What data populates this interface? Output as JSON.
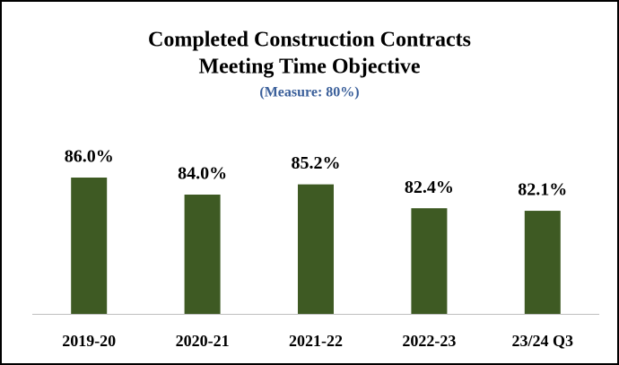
{
  "chart_data": {
    "type": "bar",
    "title": [
      "Completed Construction Contracts",
      "Meeting Time Objective"
    ],
    "subtitle": "(Measure: 80%)",
    "categories": [
      "2019-20",
      "2020-21",
      "2021-22",
      "2022-23",
      "23/24 Q3"
    ],
    "values": [
      86.0,
      84.0,
      85.2,
      82.4,
      82.1
    ],
    "value_labels": [
      "86.0%",
      "84.0%",
      "85.2%",
      "82.4%",
      "82.1%"
    ],
    "color": "#3e5a23",
    "ylim": [
      70,
      90
    ]
  }
}
